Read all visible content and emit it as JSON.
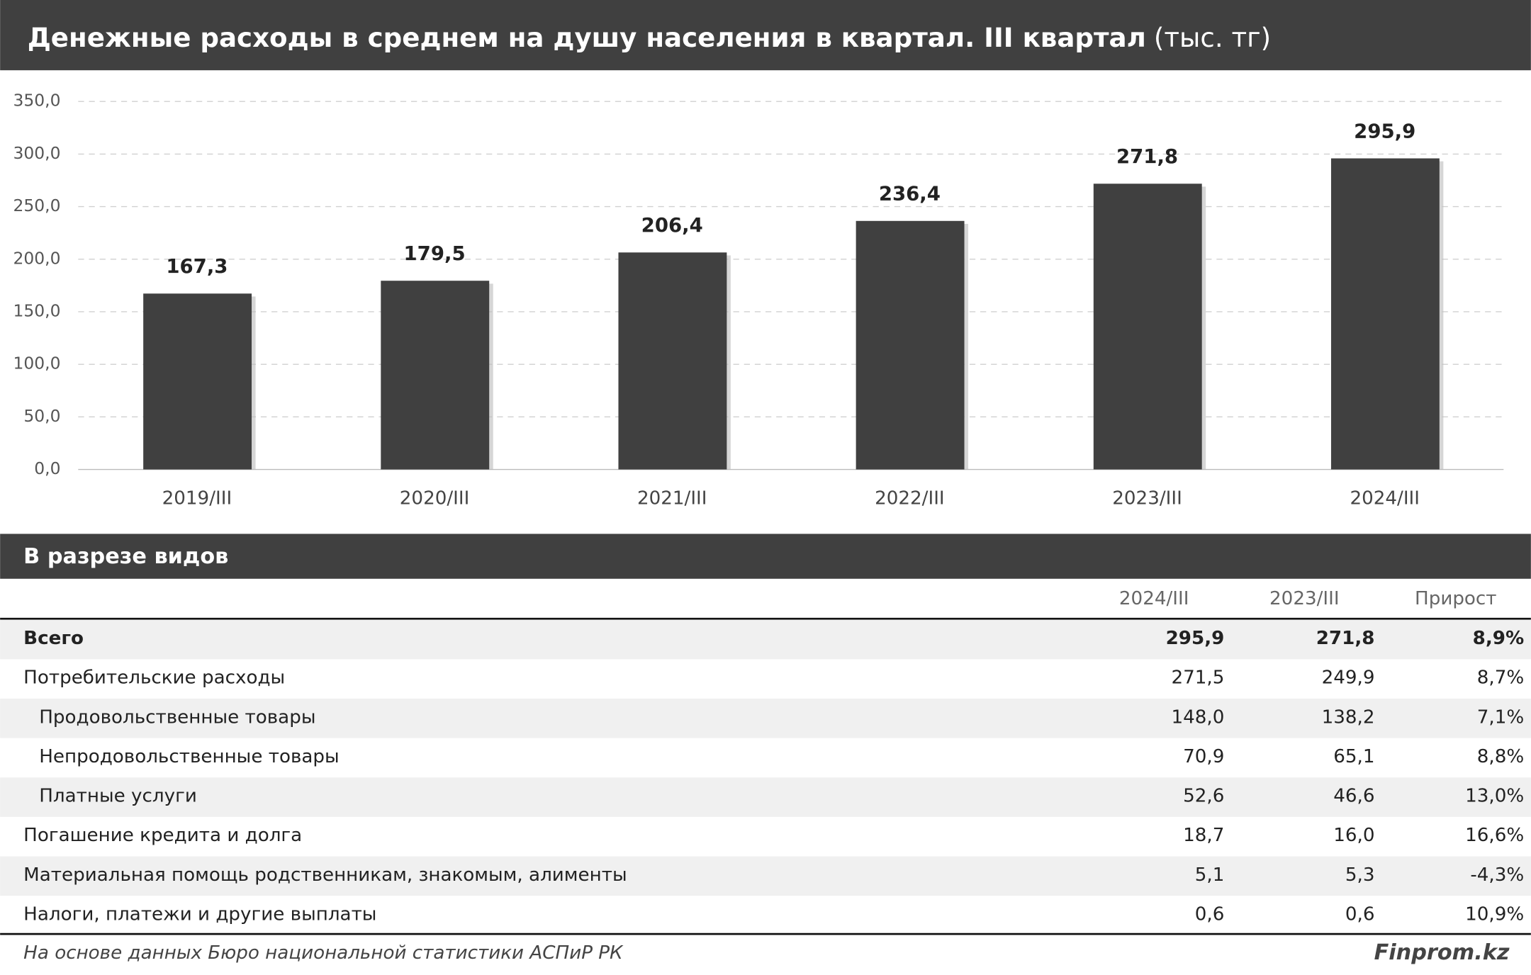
{
  "chart_data": {
    "type": "bar",
    "title": "Денежные расходы в среднем на душу населения в квартал. III квартал",
    "subtitle": "(тыс. тг)",
    "categories": [
      "2019/III",
      "2020/III",
      "2021/III",
      "2022/III",
      "2023/III",
      "2024/III"
    ],
    "values": [
      167.3,
      179.5,
      206.4,
      236.4,
      271.8,
      295.9
    ],
    "value_labels": [
      "167,3",
      "179,5",
      "206,4",
      "236,4",
      "271,8",
      "295,9"
    ],
    "color": "#404040",
    "ylim": [
      0,
      350
    ],
    "yticks": [
      {
        "value": 0,
        "label": "0,0"
      },
      {
        "value": 50,
        "label": "50,0"
      },
      {
        "value": 100,
        "label": "100,0"
      },
      {
        "value": 150,
        "label": "150,0"
      },
      {
        "value": 200,
        "label": "200,0"
      },
      {
        "value": 250,
        "label": "250,0"
      },
      {
        "value": 300,
        "label": "300,0"
      },
      {
        "value": 350,
        "label": "350,0"
      }
    ],
    "grid": true
  },
  "table": {
    "title": "В разрезе видов",
    "columns": [
      "2024/III",
      "2023/III",
      "Прирост"
    ],
    "rows": [
      [
        "Всего",
        "295,9",
        "271,8",
        "8,9%"
      ],
      [
        "Потребительские расходы",
        "271,5",
        "249,9",
        "8,7%"
      ],
      [
        "Продовольственные товары",
        "148,0",
        "138,2",
        "7,1%"
      ],
      [
        "Непродовольственные товары",
        "70,9",
        "65,1",
        "8,8%"
      ],
      [
        "Платные услуги",
        "52,6",
        "46,6",
        "13,0%"
      ],
      [
        "Погашение кредита и долга",
        "18,7",
        "16,0",
        "16,6%"
      ],
      [
        "Материальная помощь родственникам, знакомым, алименты",
        "5,1",
        "5,3",
        "-4,3%"
      ],
      [
        "Налоги, платежи и другие выплаты",
        "0,6",
        "0,6",
        "10,9%"
      ]
    ]
  },
  "footer": {
    "source": "На основе данных Бюро национальной статистики АСПиР РК",
    "brand": "Finprom.kz"
  }
}
